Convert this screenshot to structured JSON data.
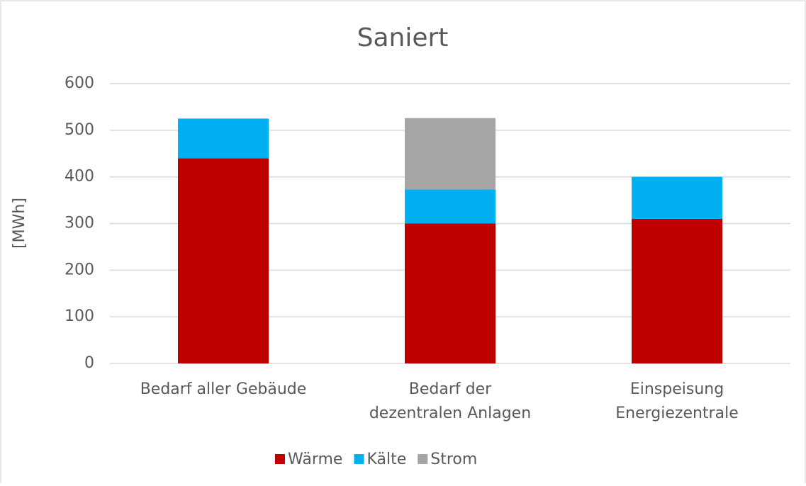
{
  "chart_data": {
    "type": "stacked_bar",
    "title": "Saniert",
    "y_label": "[MWh]",
    "categories": [
      [
        "Bedarf aller Gebäude"
      ],
      [
        "Bedarf der",
        "dezentralen Anlagen"
      ],
      [
        "Einspeisung",
        "Energiezentrale"
      ]
    ],
    "series": [
      {
        "name": "Wärme",
        "color": "#c00000",
        "values": [
          440,
          300,
          310
        ]
      },
      {
        "name": "Kälte",
        "color": "#00b0f0",
        "values": [
          85,
          73,
          90
        ]
      },
      {
        "name": "Strom",
        "color": "#a5a5a5",
        "values": [
          0,
          153,
          0
        ]
      }
    ],
    "ylim": [
      0,
      600
    ],
    "yticks": [
      0,
      100,
      200,
      300,
      400,
      500,
      600
    ],
    "grid": true,
    "legend": "bottom"
  }
}
